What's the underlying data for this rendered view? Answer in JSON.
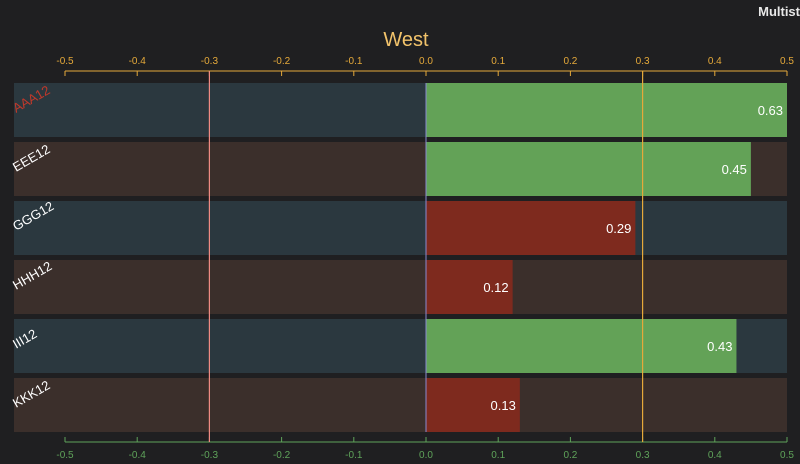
{
  "panel": {
    "title": "Multist"
  },
  "chart_data": {
    "type": "bar",
    "orientation": "horizontal",
    "title": "West",
    "categories": [
      "AAA12",
      "EEE12",
      "GGG12",
      "HHH12",
      "III12",
      "KKK12"
    ],
    "values": [
      0.63,
      0.45,
      0.29,
      0.12,
      0.43,
      0.13
    ],
    "value_labels": [
      "0.63",
      "0.45",
      "0.29",
      "0.12",
      "0.43",
      "0.13"
    ],
    "bar_colors": [
      "#63a257",
      "#63a257",
      "#7e2a1e",
      "#7e2a1e",
      "#63a257",
      "#7e2a1e"
    ],
    "xlim": [
      -0.5,
      0.5
    ],
    "x_ticks": [
      -0.5,
      -0.4,
      -0.3,
      -0.2,
      -0.1,
      0.0,
      0.1,
      0.2,
      0.3,
      0.4,
      0.5
    ],
    "x_tick_labels": [
      "-0.5",
      "-0.4",
      "-0.3",
      "-0.2",
      "-0.1",
      "0.0",
      "0.1",
      "0.2",
      "0.3",
      "0.4",
      "0.5"
    ],
    "reference_lines": [
      {
        "value": -0.3,
        "color": "#f08a82"
      },
      {
        "value": 0.3,
        "color": "#e5a93a"
      }
    ],
    "highlighted_category": "AAA12",
    "colors": {
      "title": "#f2c36b",
      "top_axis": "#e5a93a",
      "bottom_axis": "#5fa35a",
      "row_bg": [
        "#2b383f",
        "#3b2f2b"
      ],
      "zero_line": "#8a8ad0",
      "label": "#ffffff",
      "label_highlight": "#c0392b"
    }
  }
}
